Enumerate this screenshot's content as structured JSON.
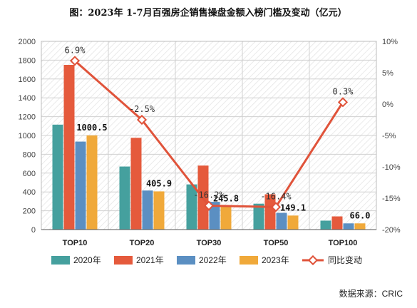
{
  "chart_data": {
    "type": "bar",
    "title": "图：2023年 1-7月百强房企销售操盘金额入榜门槛及变动（亿元）",
    "categories": [
      "TOP10",
      "TOP20",
      "TOP30",
      "TOP50",
      "TOP100"
    ],
    "series": [
      {
        "name": "2020年",
        "color": "#45A09E",
        "values": [
          1115,
          670,
          480,
          275,
          95
        ]
      },
      {
        "name": "2021年",
        "color": "#E55A3C",
        "values": [
          1750,
          975,
          680,
          375,
          140
        ]
      },
      {
        "name": "2022年",
        "color": "#5B8FC2",
        "values": [
          935,
          415,
          295,
          178,
          66
        ]
      },
      {
        "name": "2023年",
        "color": "#F0A93A",
        "values": [
          1000.5,
          405.9,
          245.8,
          149.1,
          66.0
        ],
        "labels": [
          "1000.5",
          "405.9",
          "245.8",
          "149.1",
          "66.0"
        ]
      }
    ],
    "line_series": {
      "name": "同比变动",
      "color": "#E0533A",
      "values": [
        6.9,
        -2.5,
        -16.2,
        -16.4,
        0.3
      ],
      "labels": [
        "6.9%",
        "-2.5%",
        "-16.2%",
        "-16.4%",
        "0.3%"
      ]
    },
    "ylim": [
      0,
      2000
    ],
    "y_ticks": [
      "0",
      "200",
      "400",
      "600",
      "800",
      "1000",
      "1200",
      "1400",
      "1600",
      "1800",
      "2000"
    ],
    "y2lim": [
      -20,
      10
    ],
    "y2_ticks": [
      "-20%",
      "-15%",
      "-10%",
      "-5%",
      "0%",
      "5%",
      "10%"
    ],
    "legend_position": "bottom",
    "grid": true
  },
  "source_text": "数据来源：CRIC"
}
